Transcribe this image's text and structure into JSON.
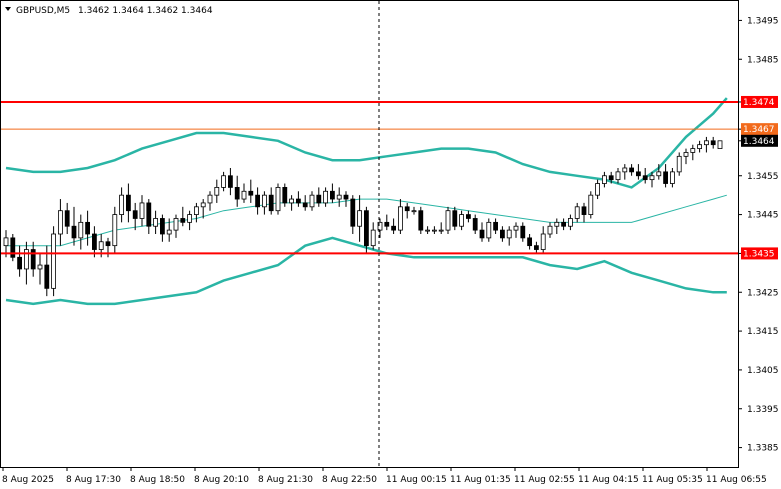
{
  "header": {
    "symbol": "GBPUSD,M5",
    "ohlc": "1.3462 1.3464 1.3462 1.3464"
  },
  "chart_data": {
    "type": "candlestick",
    "y_range": [
      1.338,
      1.35
    ],
    "y_ticks": [
      "1.3495",
      "1.3485",
      "1.3474",
      "1.3467",
      "1.3464",
      "1.3455",
      "1.3445",
      "1.3435",
      "1.3425",
      "1.3415",
      "1.3405",
      "1.3395",
      "1.3385"
    ],
    "x_ticks": [
      "8 Aug 2025",
      "8 Aug 17:30",
      "8 Aug 18:50",
      "8 Aug 20:10",
      "8 Aug 21:30",
      "8 Aug 22:50",
      "11 Aug 00:15",
      "11 Aug 01:35",
      "11 Aug 02:55",
      "11 Aug 04:15",
      "11 Aug 05:35",
      "11 Aug 06:55"
    ],
    "horizontal_lines": [
      {
        "value": 1.3474,
        "label": "1.3474",
        "color": "#ff0000"
      },
      {
        "value": 1.3467,
        "label": "1.3467",
        "color": "#f26a1b"
      },
      {
        "value": 1.3435,
        "label": "1.3435",
        "color": "#ff0000"
      }
    ],
    "current_price": {
      "value": 1.3464,
      "label": "1.3464"
    },
    "colors": {
      "bands": "#2ab5a5",
      "candles": "#000000",
      "up_fill": "#ffffff",
      "down_fill": "#000000"
    },
    "bollinger": {
      "upper": [
        [
          0,
          1.3457
        ],
        [
          4,
          1.3456
        ],
        [
          8,
          1.3456
        ],
        [
          12,
          1.3457
        ],
        [
          16,
          1.3459
        ],
        [
          20,
          1.3462
        ],
        [
          24,
          1.3464
        ],
        [
          28,
          1.3466
        ],
        [
          32,
          1.3466
        ],
        [
          36,
          1.3465
        ],
        [
          40,
          1.3464
        ],
        [
          44,
          1.3461
        ],
        [
          48,
          1.3459
        ],
        [
          52,
          1.3459
        ],
        [
          56,
          1.346
        ],
        [
          60,
          1.3461
        ],
        [
          64,
          1.3462
        ],
        [
          68,
          1.3462
        ],
        [
          72,
          1.3461
        ],
        [
          76,
          1.3458
        ],
        [
          80,
          1.3456
        ],
        [
          84,
          1.3455
        ],
        [
          88,
          1.3454
        ],
        [
          92,
          1.3452
        ],
        [
          96,
          1.3457
        ],
        [
          100,
          1.3465
        ],
        [
          104,
          1.3471
        ],
        [
          106,
          1.3475
        ]
      ],
      "middle": [
        [
          0,
          1.3437
        ],
        [
          8,
          1.3437
        ],
        [
          12,
          1.3439
        ],
        [
          16,
          1.3441
        ],
        [
          20,
          1.3442
        ],
        [
          24,
          1.3443
        ],
        [
          28,
          1.3444
        ],
        [
          32,
          1.3446
        ],
        [
          36,
          1.3447
        ],
        [
          40,
          1.3448
        ],
        [
          44,
          1.3448
        ],
        [
          48,
          1.3448
        ],
        [
          52,
          1.3449
        ],
        [
          56,
          1.3449
        ],
        [
          60,
          1.3448
        ],
        [
          64,
          1.3447
        ],
        [
          68,
          1.3446
        ],
        [
          72,
          1.3445
        ],
        [
          76,
          1.3444
        ],
        [
          80,
          1.3443
        ],
        [
          84,
          1.3443
        ],
        [
          88,
          1.3443
        ],
        [
          92,
          1.3443
        ],
        [
          96,
          1.3445
        ],
        [
          100,
          1.3447
        ],
        [
          104,
          1.3449
        ],
        [
          106,
          1.345
        ]
      ],
      "lower": [
        [
          0,
          1.3423
        ],
        [
          4,
          1.3422
        ],
        [
          8,
          1.3423
        ],
        [
          12,
          1.3422
        ],
        [
          16,
          1.3422
        ],
        [
          20,
          1.3423
        ],
        [
          24,
          1.3424
        ],
        [
          28,
          1.3425
        ],
        [
          32,
          1.3428
        ],
        [
          36,
          1.343
        ],
        [
          40,
          1.3432
        ],
        [
          44,
          1.3437
        ],
        [
          48,
          1.3439
        ],
        [
          52,
          1.3437
        ],
        [
          56,
          1.3435
        ],
        [
          60,
          1.3434
        ],
        [
          64,
          1.3434
        ],
        [
          68,
          1.3434
        ],
        [
          72,
          1.3434
        ],
        [
          76,
          1.3434
        ],
        [
          80,
          1.3432
        ],
        [
          84,
          1.3431
        ],
        [
          88,
          1.3433
        ],
        [
          92,
          1.343
        ],
        [
          96,
          1.3428
        ],
        [
          100,
          1.3426
        ],
        [
          104,
          1.3425
        ],
        [
          106,
          1.3425
        ]
      ]
    },
    "candles": [
      [
        1.3437,
        1.3441,
        1.3434,
        1.3439
      ],
      [
        1.3439,
        1.344,
        1.3433,
        1.3434
      ],
      [
        1.3434,
        1.3437,
        1.3429,
        1.3431
      ],
      [
        1.3431,
        1.3438,
        1.3427,
        1.3436
      ],
      [
        1.3436,
        1.3438,
        1.3429,
        1.3431
      ],
      [
        1.3431,
        1.3435,
        1.3427,
        1.3432
      ],
      [
        1.3432,
        1.3437,
        1.3424,
        1.3426
      ],
      [
        1.3426,
        1.3442,
        1.3424,
        1.344
      ],
      [
        1.344,
        1.3449,
        1.3437,
        1.3446
      ],
      [
        1.3446,
        1.3448,
        1.344,
        1.3442
      ],
      [
        1.3442,
        1.3447,
        1.3437,
        1.3439
      ],
      [
        1.3439,
        1.3445,
        1.3436,
        1.3443
      ],
      [
        1.3443,
        1.3446,
        1.3437,
        1.344
      ],
      [
        1.344,
        1.3442,
        1.3434,
        1.3436
      ],
      [
        1.3436,
        1.344,
        1.3434,
        1.3438
      ],
      [
        1.3438,
        1.3439,
        1.3434,
        1.3437
      ],
      [
        1.3437,
        1.3447,
        1.3435,
        1.3445
      ],
      [
        1.3445,
        1.3452,
        1.3443,
        1.345
      ],
      [
        1.345,
        1.3453,
        1.3443,
        1.3446
      ],
      [
        1.3446,
        1.3448,
        1.3441,
        1.3444
      ],
      [
        1.3444,
        1.345,
        1.3442,
        1.3448
      ],
      [
        1.3448,
        1.3449,
        1.344,
        1.3442
      ],
      [
        1.3442,
        1.3446,
        1.344,
        1.3444
      ],
      [
        1.3444,
        1.3445,
        1.3438,
        1.344
      ],
      [
        1.344,
        1.3444,
        1.3438,
        1.3441
      ],
      [
        1.3441,
        1.3445,
        1.3439,
        1.3444
      ],
      [
        1.3444,
        1.3447,
        1.3442,
        1.3443
      ],
      [
        1.3443,
        1.3446,
        1.3441,
        1.3445
      ],
      [
        1.3445,
        1.3448,
        1.3443,
        1.3447
      ],
      [
        1.3447,
        1.3449,
        1.3444,
        1.3448
      ],
      [
        1.3448,
        1.3451,
        1.3446,
        1.345
      ],
      [
        1.345,
        1.3454,
        1.3448,
        1.3452
      ],
      [
        1.3452,
        1.3456,
        1.3451,
        1.3455
      ],
      [
        1.3455,
        1.3457,
        1.345,
        1.3452
      ],
      [
        1.3452,
        1.3455,
        1.3447,
        1.3449
      ],
      [
        1.3449,
        1.3453,
        1.3448,
        1.3451
      ],
      [
        1.3451,
        1.3454,
        1.3448,
        1.345
      ],
      [
        1.345,
        1.3452,
        1.3445,
        1.3447
      ],
      [
        1.3447,
        1.3451,
        1.3445,
        1.345
      ],
      [
        1.345,
        1.3452,
        1.3445,
        1.3446
      ],
      [
        1.3446,
        1.3453,
        1.3445,
        1.3452
      ],
      [
        1.3452,
        1.3453,
        1.3447,
        1.3448
      ],
      [
        1.3448,
        1.345,
        1.3446,
        1.3449
      ],
      [
        1.3449,
        1.3451,
        1.3447,
        1.3448
      ],
      [
        1.3448,
        1.345,
        1.3446,
        1.3447
      ],
      [
        1.3447,
        1.3451,
        1.3446,
        1.345
      ],
      [
        1.345,
        1.3452,
        1.3447,
        1.3448
      ],
      [
        1.3448,
        1.3452,
        1.3447,
        1.3451
      ],
      [
        1.3451,
        1.3453,
        1.3448,
        1.3449
      ],
      [
        1.3449,
        1.3452,
        1.3447,
        1.345
      ],
      [
        1.345,
        1.3451,
        1.3447,
        1.3449
      ],
      [
        1.3449,
        1.345,
        1.344,
        1.3442
      ],
      [
        1.3442,
        1.345,
        1.3438,
        1.3446
      ],
      [
        1.3446,
        1.3447,
        1.3435,
        1.3437
      ],
      [
        1.3437,
        1.3443,
        1.3436,
        1.3441
      ],
      [
        1.3441,
        1.3444,
        1.3439,
        1.3443
      ],
      [
        1.3443,
        1.3445,
        1.3441,
        1.3442
      ],
      [
        1.3442,
        1.3444,
        1.344,
        1.3441
      ],
      [
        1.3441,
        1.3449,
        1.344,
        1.3447
      ],
      [
        1.3447,
        1.3448,
        1.3444,
        1.3446
      ],
      [
        1.3446,
        1.3447,
        1.3445,
        1.3446
      ],
      [
        1.3446,
        1.3447,
        1.344,
        1.3441
      ],
      [
        1.3441,
        1.3442,
        1.344,
        1.3441
      ],
      [
        1.3441,
        1.3442,
        1.344,
        1.3441
      ],
      [
        1.3441,
        1.3443,
        1.344,
        1.3441
      ],
      [
        1.3441,
        1.3447,
        1.344,
        1.3446
      ],
      [
        1.3446,
        1.3447,
        1.3441,
        1.3442
      ],
      [
        1.3442,
        1.3446,
        1.3441,
        1.3445
      ],
      [
        1.3445,
        1.3446,
        1.3443,
        1.3444
      ],
      [
        1.3444,
        1.3445,
        1.344,
        1.3441
      ],
      [
        1.3441,
        1.3443,
        1.3438,
        1.3439
      ],
      [
        1.3439,
        1.3444,
        1.3438,
        1.3443
      ],
      [
        1.3443,
        1.3444,
        1.344,
        1.3441
      ],
      [
        1.3441,
        1.3442,
        1.3438,
        1.3439
      ],
      [
        1.3439,
        1.3442,
        1.3437,
        1.3441
      ],
      [
        1.3441,
        1.3443,
        1.3439,
        1.3442
      ],
      [
        1.3442,
        1.3443,
        1.3438,
        1.3439
      ],
      [
        1.3439,
        1.344,
        1.3436,
        1.3437
      ],
      [
        1.3437,
        1.3438,
        1.3435,
        1.3436
      ],
      [
        1.3436,
        1.3442,
        1.3435,
        1.344
      ],
      [
        1.344,
        1.3443,
        1.3439,
        1.3442
      ],
      [
        1.3442,
        1.3444,
        1.344,
        1.3443
      ],
      [
        1.3443,
        1.3444,
        1.3441,
        1.3442
      ],
      [
        1.3442,
        1.3445,
        1.3441,
        1.3444
      ],
      [
        1.3444,
        1.3448,
        1.3443,
        1.3447
      ],
      [
        1.3447,
        1.3448,
        1.3443,
        1.3445
      ],
      [
        1.3445,
        1.3451,
        1.3444,
        1.345
      ],
      [
        1.345,
        1.3454,
        1.3449,
        1.3453
      ],
      [
        1.3453,
        1.3456,
        1.3452,
        1.3455
      ],
      [
        1.3455,
        1.3456,
        1.3453,
        1.3454
      ],
      [
        1.3454,
        1.3457,
        1.3453,
        1.3456
      ],
      [
        1.3456,
        1.3458,
        1.3454,
        1.3457
      ],
      [
        1.3457,
        1.3458,
        1.3455,
        1.3456
      ],
      [
        1.3456,
        1.3458,
        1.3454,
        1.3455
      ],
      [
        1.3455,
        1.3457,
        1.3453,
        1.3454
      ],
      [
        1.3454,
        1.3456,
        1.3452,
        1.3455
      ],
      [
        1.3455,
        1.3458,
        1.3454,
        1.3456
      ],
      [
        1.3456,
        1.3458,
        1.3452,
        1.3453
      ],
      [
        1.3453,
        1.3457,
        1.3452,
        1.3456
      ],
      [
        1.3456,
        1.3461,
        1.3455,
        1.346
      ],
      [
        1.346,
        1.3462,
        1.3458,
        1.3461
      ],
      [
        1.3461,
        1.3463,
        1.3459,
        1.3462
      ],
      [
        1.3462,
        1.3464,
        1.3461,
        1.3463
      ],
      [
        1.3463,
        1.3465,
        1.3461,
        1.3464
      ],
      [
        1.3464,
        1.3465,
        1.3462,
        1.3463
      ],
      [
        1.3462,
        1.3464,
        1.3462,
        1.3464
      ]
    ]
  }
}
